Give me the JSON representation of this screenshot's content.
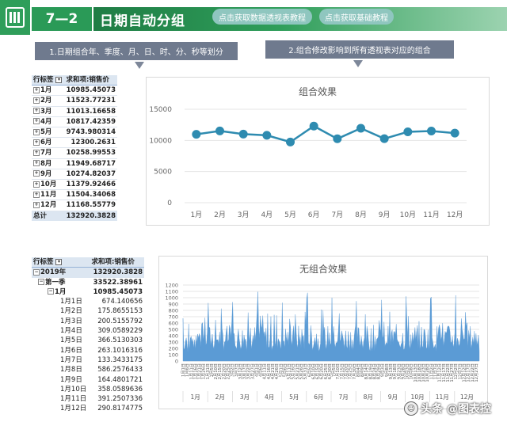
{
  "header": {
    "section_number": "7—2",
    "title": "日期自动分组",
    "link1": "点击获取数据透视表教程",
    "link2": "点击获取基础教程"
  },
  "banners": {
    "left": "1.日期组合年、季度、月、日、时、分、秒等划分",
    "right": "2.组合修改影响到所有透视表对应的组合"
  },
  "pivot1": {
    "col1": "行标签",
    "col2": "求和项:销售价",
    "rows": [
      {
        "label": "1月",
        "value": "10985.45073"
      },
      {
        "label": "2月",
        "value": "11523.77231"
      },
      {
        "label": "3月",
        "value": "11013.16658"
      },
      {
        "label": "4月",
        "value": "10817.42359"
      },
      {
        "label": "5月",
        "value": "9743.980314"
      },
      {
        "label": "6月",
        "value": "12300.2631"
      },
      {
        "label": "7月",
        "value": "10258.99553"
      },
      {
        "label": "8月",
        "value": "11949.68717"
      },
      {
        "label": "9月",
        "value": "10274.82037"
      },
      {
        "label": "10月",
        "value": "11379.92466"
      },
      {
        "label": "11月",
        "value": "11504.34068"
      },
      {
        "label": "12月",
        "value": "11168.55779"
      }
    ],
    "total_label": "总计",
    "total_value": "132920.3828"
  },
  "pivot2": {
    "col1": "行标签",
    "col2": "求和项:销售价",
    "rows": [
      {
        "label": "2019年",
        "value": "132920.3828",
        "level": 0,
        "expander": "⊟"
      },
      {
        "label": "第一季",
        "value": "33522.38961",
        "level": 1,
        "expander": "⊟"
      },
      {
        "label": "1月",
        "value": "10985.45073",
        "level": 2,
        "expander": "⊟"
      },
      {
        "label": "1月1日",
        "value": "674.140656",
        "level": 3,
        "expander": ""
      },
      {
        "label": "1月2日",
        "value": "175.8655153",
        "level": 3,
        "expander": ""
      },
      {
        "label": "1月3日",
        "value": "200.5155792",
        "level": 3,
        "expander": ""
      },
      {
        "label": "1月4日",
        "value": "309.0589229",
        "level": 3,
        "expander": ""
      },
      {
        "label": "1月5日",
        "value": "366.5130303",
        "level": 3,
        "expander": ""
      },
      {
        "label": "1月6日",
        "value": "263.1016316",
        "level": 3,
        "expander": ""
      },
      {
        "label": "1月7日",
        "value": "133.3433175",
        "level": 3,
        "expander": ""
      },
      {
        "label": "1月8日",
        "value": "586.2576433",
        "level": 3,
        "expander": ""
      },
      {
        "label": "1月9日",
        "value": "164.4801721",
        "level": 3,
        "expander": ""
      },
      {
        "label": "1月10日",
        "value": "358.0589636",
        "level": 3,
        "expander": ""
      },
      {
        "label": "1月11日",
        "value": "391.2507336",
        "level": 3,
        "expander": ""
      },
      {
        "label": "1月12日",
        "value": "290.8174775",
        "level": 3,
        "expander": ""
      }
    ]
  },
  "chart_data": [
    {
      "type": "line",
      "title": "组合效果",
      "categories": [
        "1月",
        "2月",
        "3月",
        "4月",
        "5月",
        "6月",
        "7月",
        "8月",
        "9月",
        "10月",
        "11月",
        "12月"
      ],
      "values": [
        10985.45073,
        11523.77231,
        11013.16658,
        10817.42359,
        9743.980314,
        12300.2631,
        10258.99553,
        11949.68717,
        10274.82037,
        11379.92466,
        11504.34068,
        11168.55779
      ],
      "yticks": [
        "0",
        "5000",
        "10000",
        "15000"
      ],
      "ylim": [
        0,
        15000
      ],
      "color": "#2e8bb0",
      "grid": true
    },
    {
      "type": "area",
      "title": "无组合效果",
      "yticks": [
        "0",
        "100",
        "200",
        "300",
        "400",
        "500",
        "600",
        "700",
        "800",
        "900",
        "1000",
        "1100",
        "1200"
      ],
      "ylim": [
        0,
        1200
      ],
      "month_labels": [
        "1月",
        "2月",
        "3月",
        "4月",
        "5月",
        "6月",
        "7月",
        "8月",
        "9月",
        "10月",
        "11月",
        "12月"
      ],
      "date_ticks": [
        "1月1日",
        "1月6日",
        "1月11日",
        "1月16日",
        "1月21日",
        "1月26日",
        "1月31日",
        "2月5日",
        "2月10日",
        "2月15日",
        "2月20日",
        "2月25日",
        "3月2日",
        "3月7日",
        "3月12日",
        "3月17日",
        "3月22日",
        "3月27日",
        "4月1日",
        "4月6日",
        "4月11日",
        "4月16日",
        "4月21日",
        "4月26日",
        "5月1日",
        "5月6日",
        "5月11日",
        "5月16日",
        "5月21日",
        "5月26日",
        "5月31日",
        "6月5日",
        "6月10日",
        "6月15日",
        "6月20日",
        "6月25日",
        "6月30日",
        "7月5日",
        "7月10日",
        "7月15日",
        "7月20日",
        "7月25日",
        "7月30日",
        "8月4日",
        "8月9日",
        "8月14日",
        "8月19日",
        "8月24日",
        "8月29日",
        "9月3日",
        "9月8日",
        "9月13日",
        "9月18日",
        "9月23日",
        "9月28日",
        "10月3日",
        "10月8日",
        "10月13日",
        "10月18日",
        "10月23日",
        "10月28日",
        "11月2日",
        "11月7日",
        "11月12日",
        "11月17日",
        "11月22日",
        "11月27日",
        "12月2日",
        "12月7日",
        "12月12日",
        "12月17日",
        "12月22日",
        "12月27日"
      ],
      "first_days_values": [
        674.140656,
        175.8655153,
        200.5155792,
        309.0589229,
        366.5130303,
        263.1016316,
        133.3433175,
        586.2576433,
        164.4801721,
        358.0589636,
        391.2507336,
        290.8174775
      ],
      "color": "#5b9bd5",
      "grid": true
    }
  ],
  "watermark": {
    "text": "头条 @图表控",
    "icon": "head-icon"
  }
}
